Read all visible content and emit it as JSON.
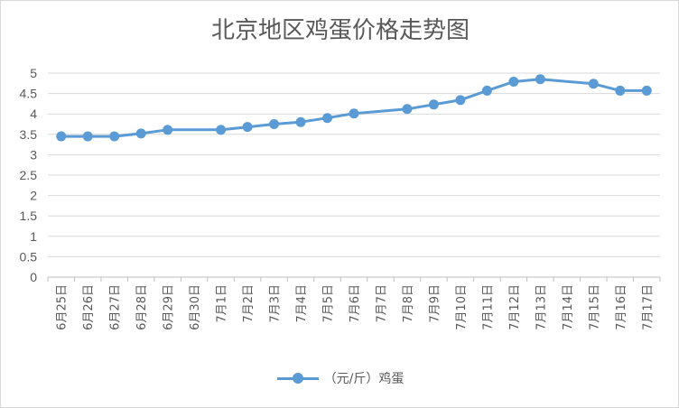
{
  "chart_data": {
    "type": "line",
    "title": "北京地区鸡蛋价格走势图",
    "xlabel": "",
    "ylabel": "",
    "ylim": [
      0,
      5
    ],
    "yticks": [
      "0",
      "0.5",
      "1",
      "1.5",
      "2",
      "2.5",
      "3",
      "3.5",
      "4",
      "4.5",
      "5"
    ],
    "grid": true,
    "legend_position": "bottom",
    "categories": [
      "6月25日",
      "6月26日",
      "6月27日",
      "6月28日",
      "6月29日",
      "6月30日",
      "7月1日",
      "7月2日",
      "7月3日",
      "7月4日",
      "7月5日",
      "7月6日",
      "7月7日",
      "7月8日",
      "7月9日",
      "7月10日",
      "7月11日",
      "7月12日",
      "7月13日",
      "7月14日",
      "7月15日",
      "7月16日",
      "7月17日"
    ],
    "series": [
      {
        "name": "（元/斤）鸡蛋",
        "color": "#5b9bd5",
        "values": [
          3.45,
          3.45,
          3.45,
          3.52,
          3.61,
          null,
          3.61,
          3.68,
          3.75,
          3.8,
          3.9,
          4.01,
          null,
          4.12,
          4.23,
          4.34,
          4.57,
          4.79,
          4.85,
          null,
          4.74,
          4.57,
          4.57
        ]
      }
    ]
  }
}
